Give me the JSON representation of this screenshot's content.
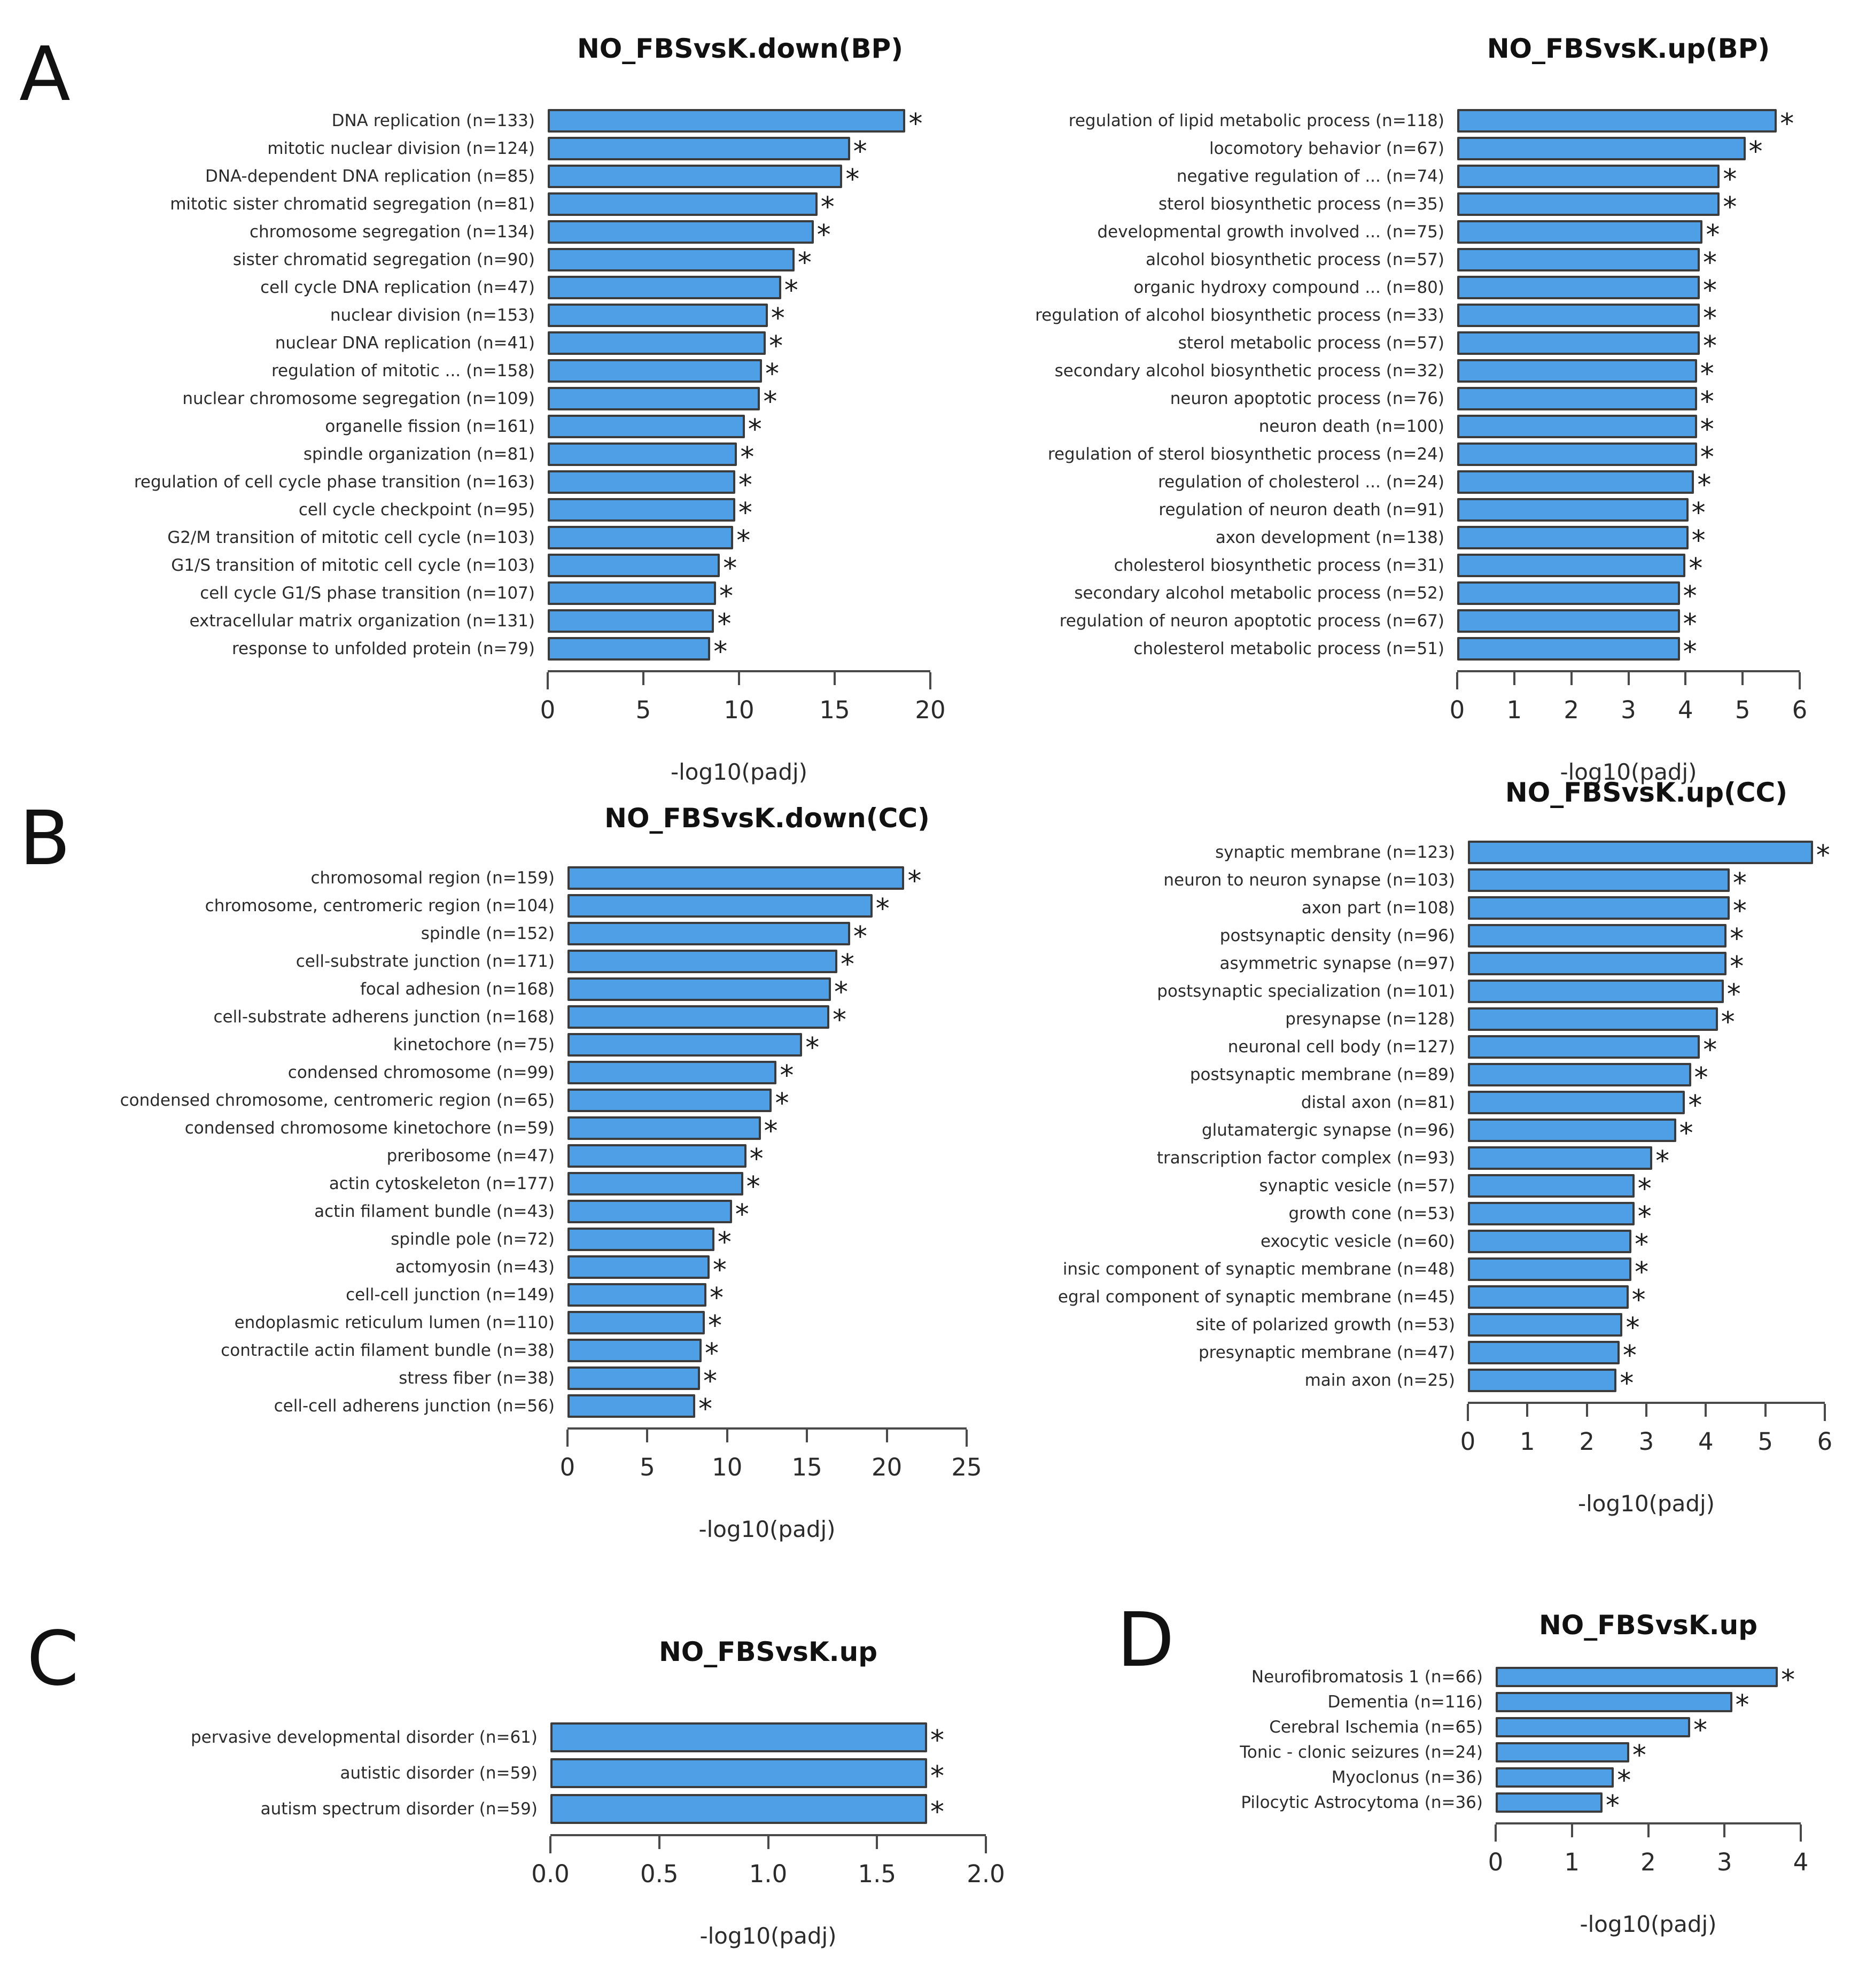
{
  "figure": {
    "panels": [
      {
        "letter": "A"
      },
      {
        "letter": "B"
      },
      {
        "letter": "C"
      },
      {
        "letter": "D"
      }
    ],
    "bar_fill_color": "#4f9fe6",
    "bar_border_color": "#3c3c3c",
    "significance_marker": "*"
  },
  "chart_data": [
    {
      "type": "bar",
      "orientation": "horizontal",
      "title": "NO_FBSvsK.down(BP)",
      "xlabel": "-log10(padj)",
      "xlim": [
        0,
        20
      ],
      "xticks": [
        0,
        5,
        10,
        15,
        20
      ],
      "xtick_labels": [
        "0",
        "5",
        "10",
        "15",
        "20"
      ],
      "grid": false,
      "legend": "none",
      "categories": [
        "DNA replication (n=133)",
        "mitotic nuclear division (n=124)",
        "DNA-dependent DNA replication (n=85)",
        "mitotic sister chromatid segregation (n=81)",
        "chromosome segregation (n=134)",
        "sister chromatid segregation (n=90)",
        "cell cycle DNA replication (n=47)",
        "nuclear division (n=153)",
        "nuclear DNA replication (n=41)",
        "regulation of mitotic ... (n=158)",
        "nuclear chromosome segregation (n=109)",
        "organelle fission (n=161)",
        "spindle organization (n=81)",
        "regulation of cell cycle phase transition (n=163)",
        "cell cycle checkpoint (n=95)",
        "G2/M transition of mitotic cell cycle (n=103)",
        "G1/S transition of mitotic cell cycle (n=103)",
        "cell cycle G1/S phase transition (n=107)",
        "extracellular matrix organization (n=131)",
        "response to unfolded protein (n=79)"
      ],
      "values": [
        18.7,
        15.8,
        15.4,
        14.1,
        13.9,
        12.9,
        12.2,
        11.5,
        11.4,
        11.2,
        11.1,
        10.3,
        9.9,
        9.8,
        9.8,
        9.7,
        9.0,
        8.8,
        8.7,
        8.5
      ],
      "significant": [
        true,
        true,
        true,
        true,
        true,
        true,
        true,
        true,
        true,
        true,
        true,
        true,
        true,
        true,
        true,
        true,
        true,
        true,
        true,
        true
      ]
    },
    {
      "type": "bar",
      "orientation": "horizontal",
      "title": "NO_FBSvsK.up(BP)",
      "xlabel": "-log10(padj)",
      "xlim": [
        0,
        6
      ],
      "xticks": [
        0,
        1,
        2,
        3,
        4,
        5,
        6
      ],
      "xtick_labels": [
        "0",
        "1",
        "2",
        "3",
        "4",
        "5",
        "6"
      ],
      "grid": false,
      "legend": "none",
      "categories": [
        "regulation of lipid metabolic process (n=118)",
        "locomotory behavior (n=67)",
        "negative regulation of ... (n=74)",
        "sterol biosynthetic process (n=35)",
        "developmental growth involved ... (n=75)",
        "alcohol biosynthetic process (n=57)",
        "organic hydroxy compound ... (n=80)",
        "regulation of alcohol biosynthetic process (n=33)",
        "sterol metabolic process (n=57)",
        "secondary alcohol biosynthetic process (n=32)",
        "neuron apoptotic process (n=76)",
        "neuron death (n=100)",
        "regulation of sterol biosynthetic process (n=24)",
        "regulation of cholesterol ... (n=24)",
        "regulation of neuron death (n=91)",
        "axon development (n=138)",
        "cholesterol biosynthetic process (n=31)",
        "secondary alcohol metabolic process (n=52)",
        "regulation of neuron apoptotic process (n=67)",
        "cholesterol metabolic process (n=51)"
      ],
      "values": [
        5.6,
        5.05,
        4.6,
        4.6,
        4.3,
        4.25,
        4.25,
        4.25,
        4.25,
        4.2,
        4.2,
        4.2,
        4.2,
        4.15,
        4.05,
        4.05,
        4.0,
        3.9,
        3.9,
        3.9
      ],
      "significant": [
        true,
        true,
        true,
        true,
        true,
        true,
        true,
        true,
        true,
        true,
        true,
        true,
        true,
        true,
        true,
        true,
        true,
        true,
        true,
        true
      ]
    },
    {
      "type": "bar",
      "orientation": "horizontal",
      "title": "NO_FBSvsK.down(CC)",
      "xlabel": "-log10(padj)",
      "xlim": [
        0,
        25
      ],
      "xticks": [
        0,
        5,
        10,
        15,
        20,
        25
      ],
      "xtick_labels": [
        "0",
        "5",
        "10",
        "15",
        "20",
        "25"
      ],
      "grid": false,
      "legend": "none",
      "categories": [
        "chromosomal region (n=159)",
        "chromosome, centromeric region (n=104)",
        "spindle (n=152)",
        "cell-substrate junction (n=171)",
        "focal adhesion (n=168)",
        "cell-substrate adherens junction (n=168)",
        "kinetochore (n=75)",
        "condensed chromosome (n=99)",
        "condensed chromosome, centromeric region (n=65)",
        "condensed chromosome kinetochore (n=59)",
        "preribosome (n=47)",
        "actin cytoskeleton (n=177)",
        "actin filament bundle (n=43)",
        "spindle pole (n=72)",
        "actomyosin (n=43)",
        "cell-cell junction (n=149)",
        "endoplasmic reticulum lumen (n=110)",
        "contractile actin filament bundle (n=38)",
        "stress fiber (n=38)",
        "cell-cell adherens junction (n=56)"
      ],
      "values": [
        21.1,
        19.1,
        17.7,
        16.9,
        16.5,
        16.4,
        14.7,
        13.1,
        12.8,
        12.1,
        11.2,
        11.0,
        10.3,
        9.2,
        8.9,
        8.7,
        8.6,
        8.4,
        8.3,
        8.0
      ],
      "significant": [
        true,
        true,
        true,
        true,
        true,
        true,
        true,
        true,
        true,
        true,
        true,
        true,
        true,
        true,
        true,
        true,
        true,
        true,
        true,
        true
      ]
    },
    {
      "type": "bar",
      "orientation": "horizontal",
      "title": "NO_FBSvsK.up(CC)",
      "xlabel": "-log10(padj)",
      "xlim": [
        0,
        6
      ],
      "xticks": [
        0,
        1,
        2,
        3,
        4,
        5,
        6
      ],
      "xtick_labels": [
        "0",
        "1",
        "2",
        "3",
        "4",
        "5",
        "6"
      ],
      "grid": false,
      "legend": "none",
      "categories": [
        "synaptic membrane (n=123)",
        "neuron to neuron synapse (n=103)",
        "axon part (n=108)",
        "postsynaptic density (n=96)",
        "asymmetric synapse (n=97)",
        "postsynaptic specialization (n=101)",
        "presynapse (n=128)",
        "neuronal cell body (n=127)",
        "postsynaptic membrane (n=89)",
        "distal axon (n=81)",
        "glutamatergic synapse (n=96)",
        "transcription factor complex (n=93)",
        "synaptic vesicle (n=57)",
        "growth cone (n=53)",
        "exocytic vesicle (n=60)",
        "insic component of synaptic membrane (n=48)",
        "egral component of synaptic membrane (n=45)",
        "site of polarized growth (n=53)",
        "presynaptic membrane (n=47)",
        "main axon (n=25)"
      ],
      "values": [
        5.8,
        4.4,
        4.4,
        4.35,
        4.35,
        4.3,
        4.2,
        3.9,
        3.75,
        3.65,
        3.5,
        3.1,
        2.8,
        2.8,
        2.75,
        2.75,
        2.7,
        2.6,
        2.55,
        2.5
      ],
      "significant": [
        true,
        true,
        true,
        true,
        true,
        true,
        true,
        true,
        true,
        true,
        true,
        true,
        true,
        true,
        true,
        true,
        true,
        true,
        true,
        true
      ]
    },
    {
      "type": "bar",
      "orientation": "horizontal",
      "title": "NO_FBSvsK.up",
      "xlabel": "-log10(padj)",
      "xlim": [
        0,
        2
      ],
      "xticks": [
        0,
        0.5,
        1,
        1.5,
        2
      ],
      "xtick_labels": [
        "0.0",
        "0.5",
        "1.0",
        "1.5",
        "2.0"
      ],
      "grid": false,
      "legend": "none",
      "categories": [
        "pervasive developmental disorder (n=61)",
        "autistic disorder (n=59)",
        "autism spectrum disorder (n=59)"
      ],
      "values": [
        1.73,
        1.73,
        1.73
      ],
      "significant": [
        true,
        true,
        true
      ]
    },
    {
      "type": "bar",
      "orientation": "horizontal",
      "title": "NO_FBSvsK.up",
      "xlabel": "-log10(padj)",
      "xlim": [
        0,
        4
      ],
      "xticks": [
        0,
        1,
        2,
        3,
        4
      ],
      "xtick_labels": [
        "0",
        "1",
        "2",
        "3",
        "4"
      ],
      "grid": false,
      "legend": "none",
      "categories": [
        "Neurofibromatosis 1 (n=66)",
        "Dementia (n=116)",
        "Cerebral Ischemia (n=65)",
        "Tonic - clonic seizures (n=24)",
        "Myoclonus (n=36)",
        "Pilocytic Astrocytoma (n=36)"
      ],
      "values": [
        3.7,
        3.1,
        2.55,
        1.75,
        1.55,
        1.4
      ],
      "significant": [
        true,
        true,
        true,
        true,
        true,
        true
      ]
    }
  ]
}
